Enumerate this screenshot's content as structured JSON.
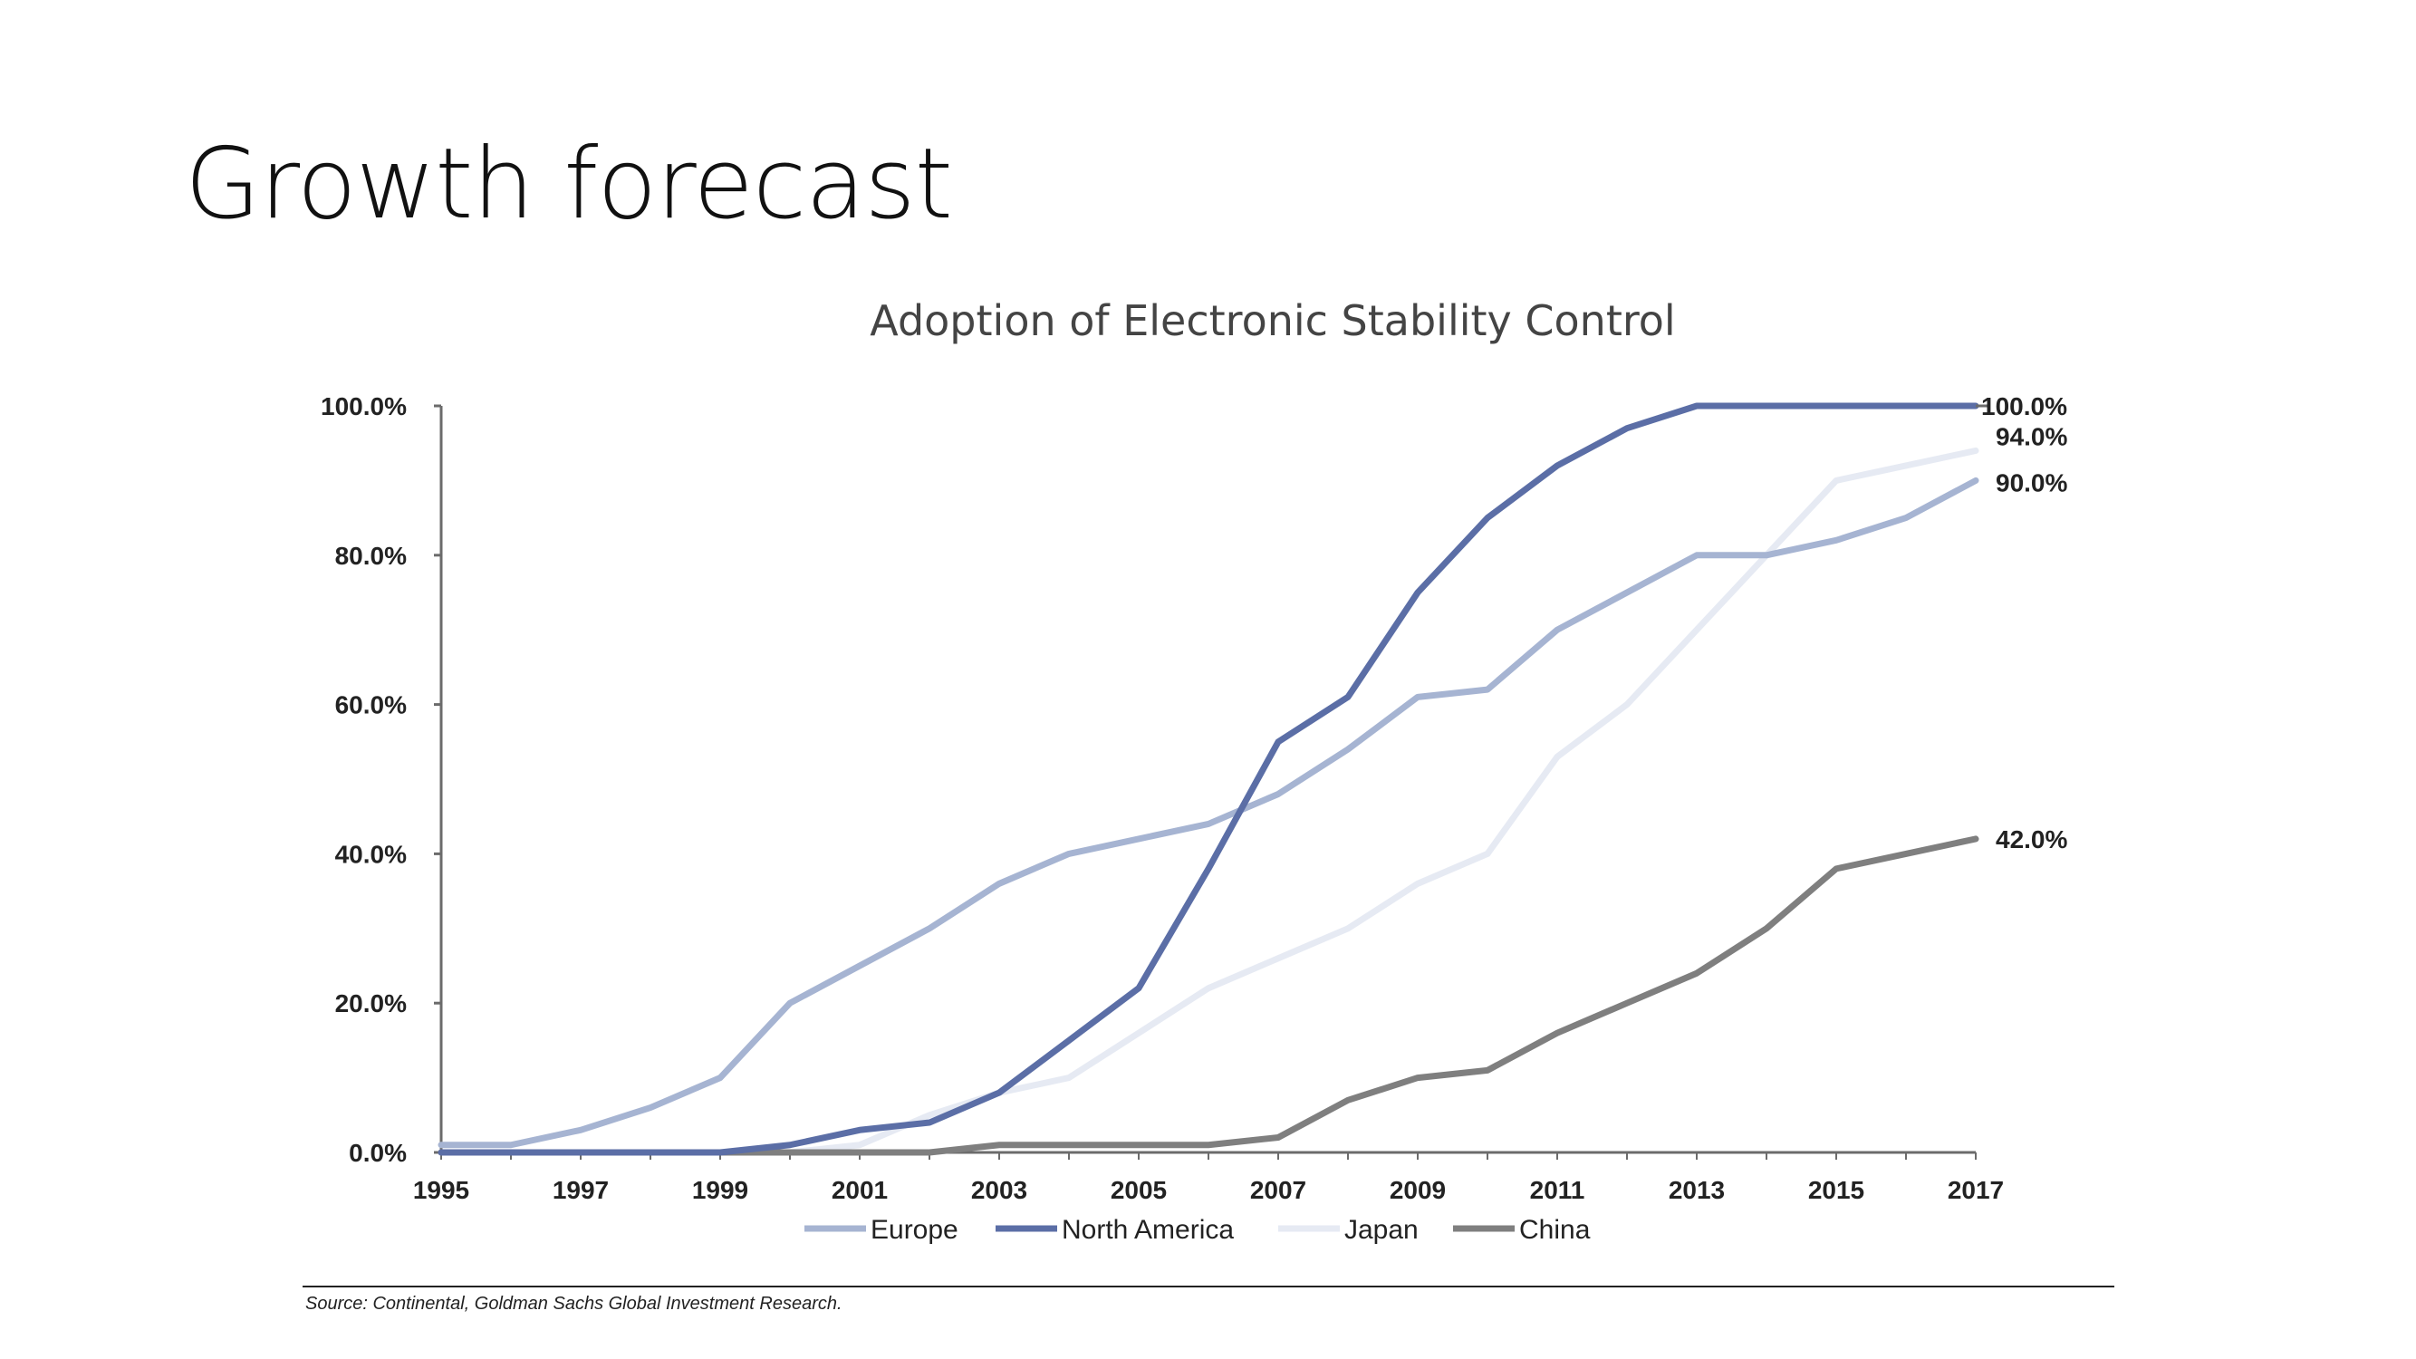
{
  "slide": {
    "title": "Growth forecast"
  },
  "chart_data": {
    "type": "line",
    "title": "Adoption of Electronic Stability Control",
    "xlabel": "",
    "ylabel": "",
    "x": [
      1995,
      1996,
      1997,
      1998,
      1999,
      2000,
      2001,
      2002,
      2003,
      2004,
      2005,
      2006,
      2007,
      2008,
      2009,
      2010,
      2011,
      2012,
      2013,
      2014,
      2015,
      2016,
      2017
    ],
    "x_tick_labels": [
      "1995",
      "1997",
      "1999",
      "2001",
      "2003",
      "2005",
      "2007",
      "2009",
      "2011",
      "2013",
      "2015",
      "2017"
    ],
    "y_tick_labels": [
      "0.0%",
      "20.0%",
      "40.0%",
      "60.0%",
      "80.0%",
      "100.0%"
    ],
    "y_ticks": [
      0,
      20,
      40,
      60,
      80,
      100
    ],
    "xlim": [
      1995,
      2017
    ],
    "ylim": [
      0,
      100
    ],
    "grid": false,
    "legend_position": "bottom",
    "series": [
      {
        "name": "Europe",
        "color": "#a6b4d2",
        "values": [
          1,
          1,
          3,
          6,
          10,
          20,
          25,
          30,
          36,
          40,
          42,
          44,
          48,
          54,
          61,
          62,
          70,
          75,
          80,
          80,
          82,
          85,
          90
        ],
        "end_label": "90.0%"
      },
      {
        "name": "North America",
        "color": "#5b6ea6",
        "values": [
          0,
          0,
          0,
          0,
          0,
          1,
          3,
          4,
          8,
          15,
          22,
          38,
          55,
          61,
          75,
          85,
          92,
          97,
          100,
          100,
          100,
          100,
          100
        ],
        "end_label": "100.0%"
      },
      {
        "name": "Japan",
        "color": "#e6eaf3",
        "values": [
          0,
          0,
          0,
          0,
          0,
          0,
          1,
          5,
          8,
          10,
          16,
          22,
          26,
          30,
          36,
          40,
          53,
          60,
          70,
          80,
          90,
          92,
          94
        ],
        "end_label": "94.0%"
      },
      {
        "name": "China",
        "color": "#7f7f7f",
        "values": [
          0,
          0,
          0,
          0,
          0,
          0,
          0,
          0,
          1,
          1,
          1,
          1,
          2,
          7,
          10,
          11,
          16,
          20,
          24,
          30,
          38,
          40,
          42
        ],
        "end_label": "42.0%"
      }
    ]
  },
  "source": {
    "text": "Source: Continental, Goldman Sachs Global Investment Research."
  }
}
